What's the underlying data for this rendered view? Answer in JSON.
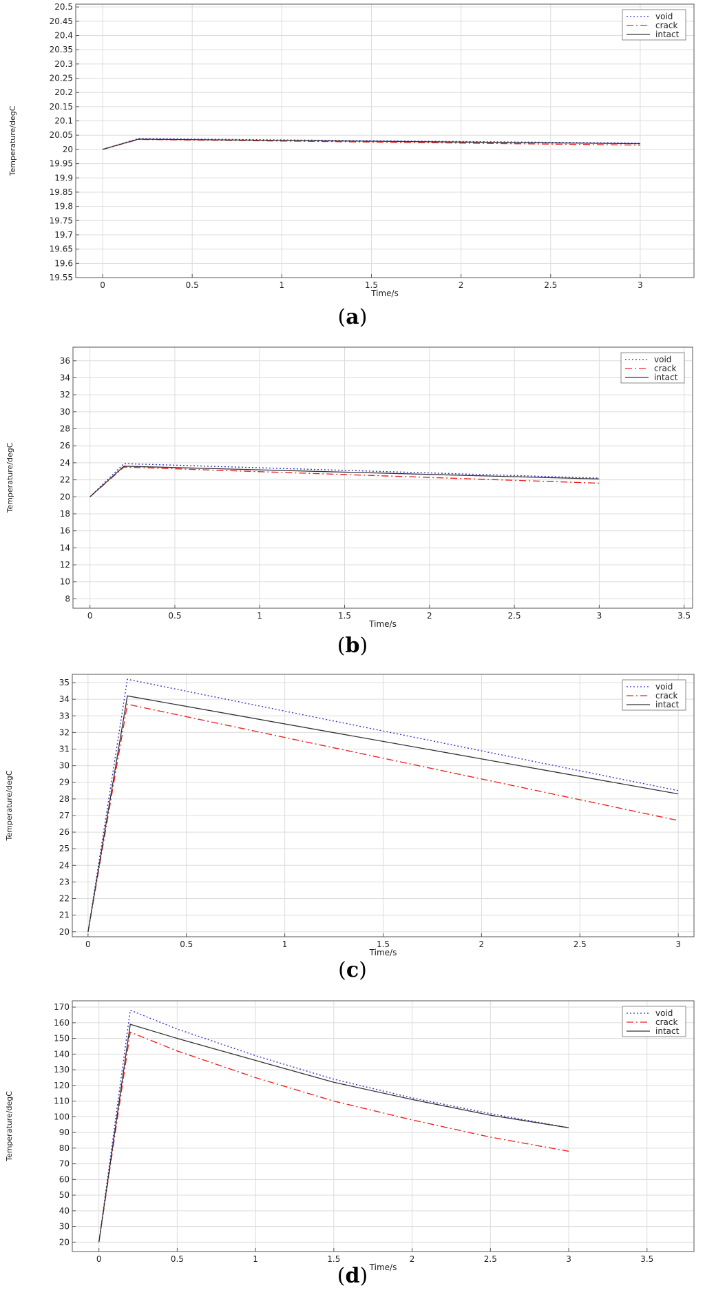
{
  "figure": {
    "panels": [
      {
        "id": "a",
        "label": "(a)",
        "letter": "a"
      },
      {
        "id": "b",
        "label": "(b)",
        "letter": "b"
      },
      {
        "id": "c",
        "label": "(c)",
        "letter": "c"
      },
      {
        "id": "d",
        "label": "(d)",
        "letter": "d"
      }
    ]
  },
  "chart_data": [
    {
      "panel": "a",
      "type": "line",
      "xlabel": "Time/s",
      "ylabel": "Temperature/degC",
      "xlim": [
        -0.15,
        3.3
      ],
      "ylim": [
        19.55,
        20.51
      ],
      "xticks": [
        0,
        0.5,
        1,
        1.5,
        2,
        2.5,
        3
      ],
      "xtick_labels": [
        "0",
        "0.5",
        "1",
        "1.5",
        "2",
        "2.5",
        "3"
      ],
      "yticks": [
        19.55,
        19.6,
        19.65,
        19.7,
        19.75,
        19.8,
        19.85,
        19.9,
        19.95,
        20,
        20.05,
        20.1,
        20.15,
        20.2,
        20.25,
        20.3,
        20.35,
        20.4,
        20.45,
        20.5
      ],
      "ytick_labels": [
        "19.55",
        "19.6",
        "19.65",
        "19.7",
        "19.75",
        "19.8",
        "19.85",
        "19.9",
        "19.95",
        "20",
        "20.05",
        "20.1",
        "20.15",
        "20.2",
        "20.25",
        "20.3",
        "20.35",
        "20.4",
        "20.45",
        "20.5"
      ],
      "grid": true,
      "legend": "top-right",
      "series": [
        {
          "name": "void",
          "color": "#3333cc",
          "style": "dotted",
          "x": [
            0,
            0.2,
            3
          ],
          "y": [
            20.0,
            20.038,
            20.022
          ]
        },
        {
          "name": "crack",
          "color": "#ee2222",
          "style": "dashdot",
          "x": [
            0,
            0.2,
            3
          ],
          "y": [
            20.0,
            20.035,
            20.015
          ]
        },
        {
          "name": "intact",
          "color": "#333333",
          "style": "solid",
          "x": [
            0,
            0.2,
            3
          ],
          "y": [
            20.0,
            20.036,
            20.02
          ]
        }
      ]
    },
    {
      "panel": "b",
      "type": "line",
      "xlabel": "Time/s",
      "ylabel": "Temperature/degC",
      "xlim": [
        -0.1,
        3.55
      ],
      "ylim": [
        6.9,
        37.6
      ],
      "xticks": [
        0,
        0.5,
        1,
        1.5,
        2,
        2.5,
        3,
        3.5
      ],
      "xtick_labels": [
        "0",
        "0.5",
        "1",
        "1.5",
        "2",
        "2.5",
        "3",
        "3.5"
      ],
      "yticks": [
        8,
        10,
        12,
        14,
        16,
        18,
        20,
        22,
        24,
        26,
        28,
        30,
        32,
        34,
        36
      ],
      "ytick_labels": [
        "8",
        "10",
        "12",
        "14",
        "16",
        "18",
        "20",
        "22",
        "24",
        "26",
        "28",
        "30",
        "32",
        "34",
        "36"
      ],
      "grid": true,
      "legend": "top-right",
      "series": [
        {
          "name": "void",
          "color": "#3333cc",
          "style": "dotted",
          "x": [
            0,
            0.2,
            3
          ],
          "y": [
            20.0,
            23.9,
            22.2
          ]
        },
        {
          "name": "crack",
          "color": "#ee2222",
          "style": "dashdot",
          "x": [
            0,
            0.2,
            3
          ],
          "y": [
            20.0,
            23.5,
            21.6
          ]
        },
        {
          "name": "intact",
          "color": "#333333",
          "style": "solid",
          "x": [
            0,
            0.2,
            3
          ],
          "y": [
            20.0,
            23.6,
            22.1
          ]
        }
      ]
    },
    {
      "panel": "c",
      "type": "line",
      "xlabel": "Time/s",
      "ylabel": "Temperature/degC",
      "xlim": [
        -0.08,
        3.08
      ],
      "ylim": [
        19.7,
        35.5
      ],
      "xticks": [
        0,
        0.5,
        1,
        1.5,
        2,
        2.5,
        3
      ],
      "xtick_labels": [
        "0",
        "0.5",
        "1",
        "1.5",
        "2",
        "2.5",
        "3"
      ],
      "yticks": [
        20,
        21,
        22,
        23,
        24,
        25,
        26,
        27,
        28,
        29,
        30,
        31,
        32,
        33,
        34,
        35
      ],
      "ytick_labels": [
        "20",
        "21",
        "22",
        "23",
        "24",
        "25",
        "26",
        "27",
        "28",
        "29",
        "30",
        "31",
        "32",
        "33",
        "34",
        "35"
      ],
      "grid": true,
      "legend": "top-right",
      "series": [
        {
          "name": "void",
          "color": "#3333cc",
          "style": "dotted",
          "x": [
            0,
            0.2,
            3
          ],
          "y": [
            20.0,
            35.2,
            28.5
          ]
        },
        {
          "name": "crack",
          "color": "#ee2222",
          "style": "dashdot",
          "x": [
            0,
            0.2,
            3
          ],
          "y": [
            20.0,
            33.7,
            26.7
          ]
        },
        {
          "name": "intact",
          "color": "#333333",
          "style": "solid",
          "x": [
            0,
            0.2,
            3
          ],
          "y": [
            20.0,
            34.2,
            28.3
          ]
        }
      ]
    },
    {
      "panel": "d",
      "type": "line",
      "xlabel": "Time/s",
      "ylabel": "Temperature/degC",
      "xlim": [
        -0.17,
        3.8
      ],
      "ylim": [
        14,
        174
      ],
      "xticks": [
        0,
        0.5,
        1,
        1.5,
        2,
        2.5,
        3,
        3.5
      ],
      "xtick_labels": [
        "0",
        "0.5",
        "1",
        "1.5",
        "2",
        "2.5",
        "3",
        "3.5"
      ],
      "yticks": [
        20,
        30,
        40,
        50,
        60,
        70,
        80,
        90,
        100,
        110,
        120,
        130,
        140,
        150,
        160,
        170
      ],
      "ytick_labels": [
        "20",
        "30",
        "40",
        "50",
        "60",
        "70",
        "80",
        "90",
        "100",
        "110",
        "120",
        "130",
        "140",
        "150",
        "160",
        "170"
      ],
      "grid": true,
      "legend": "top-right",
      "series": [
        {
          "name": "void",
          "color": "#3333cc",
          "style": "dotted",
          "x": [
            0,
            0.2,
            0.5,
            1,
            1.5,
            2,
            2.5,
            3
          ],
          "y": [
            20,
            168,
            156,
            139,
            124,
            112,
            102,
            93
          ]
        },
        {
          "name": "crack",
          "color": "#ee2222",
          "style": "dashdot",
          "x": [
            0,
            0.2,
            0.5,
            1,
            1.5,
            2,
            2.5,
            3
          ],
          "y": [
            20,
            154,
            142,
            125,
            110,
            98,
            87,
            78
          ]
        },
        {
          "name": "intact",
          "color": "#333333",
          "style": "solid",
          "x": [
            0,
            0.2,
            0.5,
            1,
            1.5,
            2,
            2.5,
            3
          ],
          "y": [
            20,
            159,
            150,
            136,
            122,
            111,
            101,
            93
          ]
        }
      ]
    }
  ]
}
